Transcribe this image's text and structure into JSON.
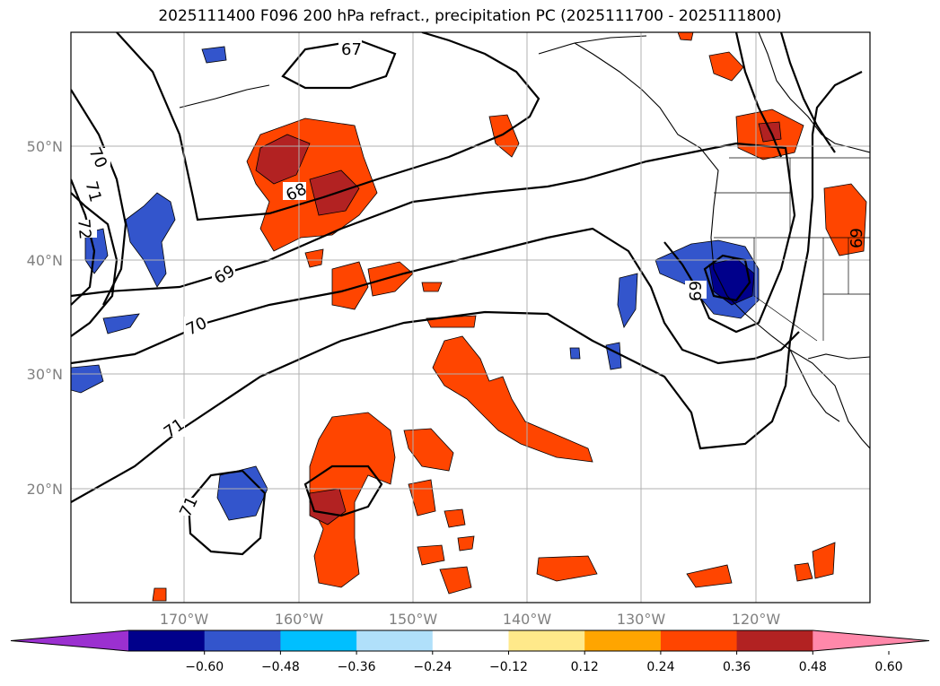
{
  "title": "2025111400 F096 200 hPa refract., precipitation PC (2025111700 - 2025111800)",
  "lat_labels": [
    "50°N",
    "40°N",
    "30°N",
    "20°N"
  ],
  "lon_labels": [
    "170°W",
    "160°W",
    "150°W",
    "140°W",
    "130°W",
    "120°W"
  ],
  "colorbar": {
    "ticks": [
      "−0.60",
      "−0.48",
      "−0.36",
      "−0.24",
      "−0.12",
      "0.12",
      "0.24",
      "0.36",
      "0.48",
      "0.60"
    ],
    "colors": [
      "#9b30d0",
      "#00008b",
      "#3355cc",
      "#00bfff",
      "#b0e0fa",
      "#ffffff",
      "#ffe98a",
      "#ffa500",
      "#ff4500",
      "#b22222",
      "#ff88aa"
    ]
  },
  "contour_labels": [
    "67",
    "68",
    "69",
    "70",
    "71",
    "72",
    "70",
    "71",
    "71",
    "69",
    "69"
  ]
}
